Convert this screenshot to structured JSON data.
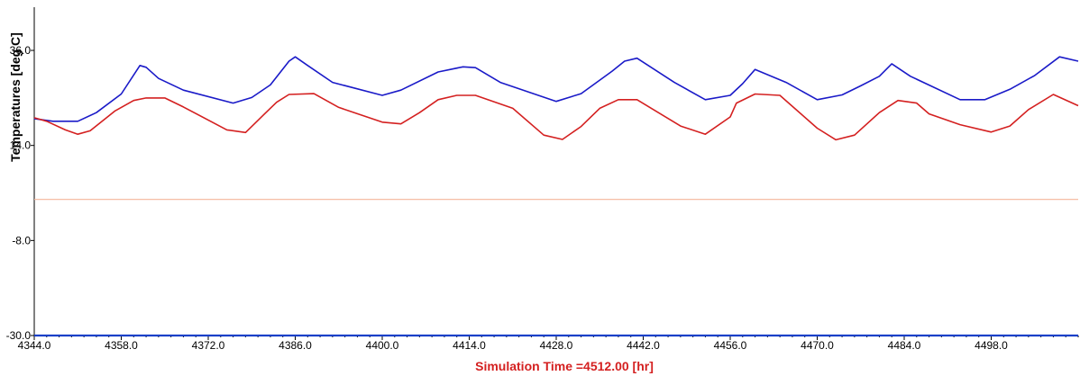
{
  "chart_data": {
    "type": "line",
    "title": "",
    "xlabel": "Simulation Time =4512.00 [hr]",
    "ylabel": "Temperatures   [deg C]",
    "xlim": [
      4344,
      4512
    ],
    "ylim": [
      -30,
      46
    ],
    "grid": false,
    "xticks": [
      4344,
      4358,
      4372,
      4386,
      4400,
      4414,
      4428,
      4442,
      4456,
      4470,
      4484,
      4498
    ],
    "xtick_labels": [
      "4344.0",
      "4358.0",
      "4372.0",
      "4386.0",
      "4400.0",
      "4414.0",
      "4428.0",
      "4442.0",
      "4456.0",
      "4470.0",
      "4484.0",
      "4498.0"
    ],
    "yticks": [
      -30,
      -8,
      14,
      36
    ],
    "ytick_labels": [
      "-30.0",
      "-8.0",
      "14.0",
      "36.0"
    ],
    "colors": {
      "series1": "#1a1ac8",
      "series2": "#d42020",
      "series3": "#f4b49a",
      "series4": "#1a40c8",
      "xlabel": "#d42020"
    },
    "series": [
      {
        "x": [
          4344,
          4347,
          4351,
          4354,
          4358,
          4361,
          4362,
          4364,
          4368,
          4376,
          4379,
          4382,
          4385,
          4386,
          4388,
          4392,
          4400,
          4403,
          4409,
          4413,
          4415,
          4419,
          4428,
          4432,
          4437,
          4439,
          4441,
          4447,
          4452,
          4456,
          4458,
          4460,
          4465,
          4470,
          4474,
          4477,
          4480,
          4482,
          4485,
          4493,
          4497,
          4501,
          4505,
          4509,
          4512
        ],
        "y": [
          20.2,
          19.6,
          19.6,
          21.6,
          25.9,
          32.5,
          32.1,
          29.5,
          26.8,
          23.8,
          25.1,
          28.0,
          33.5,
          34.5,
          32.5,
          28.6,
          25.6,
          26.8,
          31.0,
          32.2,
          32.0,
          28.6,
          24.2,
          26.0,
          31.2,
          33.5,
          34.2,
          28.6,
          24.6,
          25.6,
          28.3,
          31.6,
          28.6,
          24.6,
          25.7,
          27.8,
          30.0,
          32.9,
          30.0,
          24.6,
          24.6,
          27.0,
          30.2,
          34.5,
          33.5
        ]
      },
      {
        "x": [
          4344,
          4346,
          4349,
          4351,
          4353,
          4357,
          4360,
          4362,
          4365,
          4368,
          4375,
          4378,
          4381,
          4383,
          4385,
          4389,
          4393,
          4400,
          4403,
          4406,
          4409,
          4412,
          4415,
          4421,
          4426,
          4429,
          4432,
          4435,
          4438,
          4441,
          4448,
          4452,
          4456,
          4457,
          4460,
          4464,
          4470,
          4473,
          4476,
          4480,
          4483,
          4486,
          4488,
          4493,
          4498,
          4501,
          4504,
          4508,
          4512
        ],
        "y": [
          20.4,
          19.6,
          17.6,
          16.6,
          17.4,
          22.0,
          24.4,
          25.0,
          25.0,
          22.9,
          17.6,
          17.0,
          21.2,
          24.0,
          25.8,
          26.0,
          22.8,
          19.4,
          19.0,
          21.6,
          24.6,
          25.6,
          25.6,
          22.6,
          16.4,
          15.4,
          18.4,
          22.6,
          24.6,
          24.6,
          18.5,
          16.6,
          20.6,
          23.8,
          25.9,
          25.6,
          18.0,
          15.3,
          16.4,
          21.6,
          24.4,
          23.8,
          21.3,
          18.8,
          17.1,
          18.5,
          22.3,
          25.8,
          23.2
        ]
      },
      {
        "x": [
          4344,
          4512
        ],
        "y": [
          1.5,
          1.5
        ]
      },
      {
        "x": [
          4344,
          4512
        ],
        "y": [
          -30.0,
          -30.0
        ]
      }
    ]
  }
}
